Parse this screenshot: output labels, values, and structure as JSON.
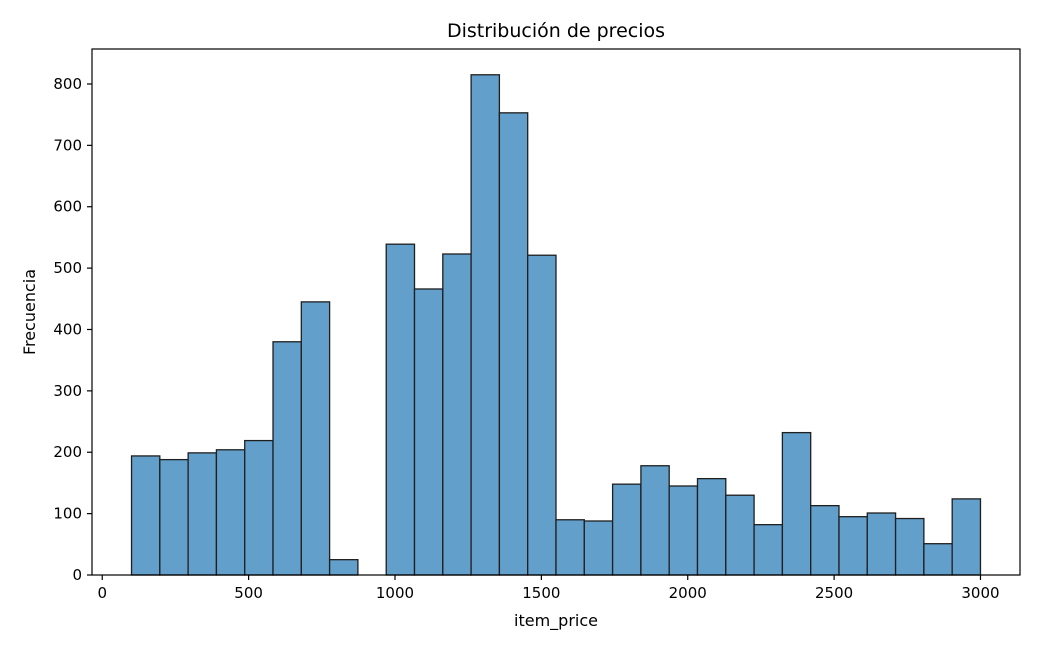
{
  "chart_data": {
    "type": "bar",
    "title": "Distribución de precios",
    "xlabel": "item_price",
    "ylabel": "Frecuencia",
    "xlim": [
      -35,
      3135
    ],
    "ylim": [
      0,
      857
    ],
    "xticks": [
      0,
      500,
      1000,
      1500,
      2000,
      2500,
      3000
    ],
    "yticks": [
      0,
      100,
      200,
      300,
      400,
      500,
      600,
      700,
      800
    ],
    "bin_edges": [
      100,
      196.67,
      293.33,
      390,
      486.67,
      583.33,
      680,
      776.67,
      873.33,
      970,
      1066.67,
      1163.33,
      1260,
      1356.67,
      1453.33,
      1550,
      1646.67,
      1743.33,
      1840,
      1936.67,
      2033.33,
      2130,
      2226.67,
      2323.33,
      2420,
      2516.67,
      2613.33,
      2710,
      2806.67,
      2903.33,
      3000
    ],
    "values": [
      194,
      188,
      199,
      204,
      219,
      380,
      445,
      25,
      0,
      539,
      466,
      523,
      815,
      753,
      521,
      90,
      88,
      148,
      178,
      145,
      157,
      130,
      82,
      232,
      113,
      95,
      101,
      92,
      51,
      124
    ],
    "grid": false,
    "bar_color": "#629fca",
    "edge_color": "#1f1f1f"
  }
}
